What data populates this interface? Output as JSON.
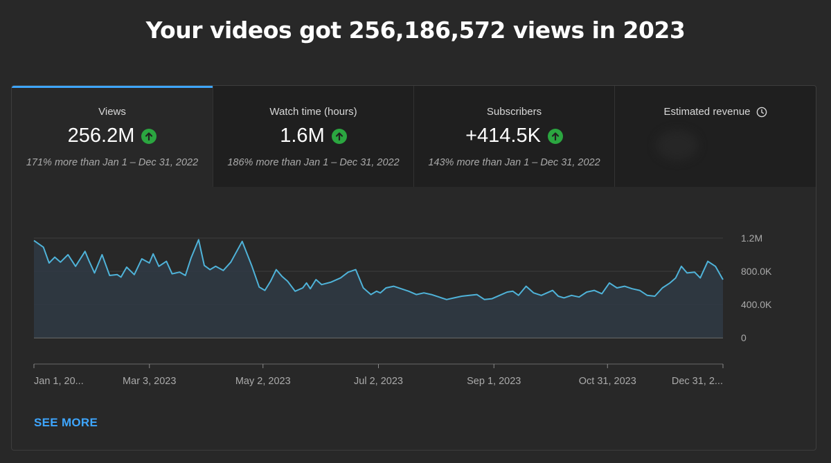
{
  "headline": "Your videos got 256,186,572 views in 2023",
  "tabs": [
    {
      "label": "Views",
      "value": "256.2M",
      "compare": "171% more than Jan 1 – Dec 31, 2022"
    },
    {
      "label": "Watch time (hours)",
      "value": "1.6M",
      "compare": "186% more than Jan 1 – Dec 31, 2022"
    },
    {
      "label": "Subscribers",
      "value": "+414.5K",
      "compare": "143% more than Jan 1 – Dec 31, 2022"
    },
    {
      "label": "Estimated revenue"
    }
  ],
  "see_more": "SEE MORE",
  "colors": {
    "accent": "#3ea6ff",
    "line": "#4fb3d9",
    "up": "#2ba640"
  },
  "chart_data": {
    "type": "area",
    "ylim": [
      0,
      1200000
    ],
    "y_ticks": [
      0,
      400000,
      800000,
      1200000
    ],
    "y_tick_labels": [
      "0",
      "400.0K",
      "800.0K",
      "1.2M"
    ],
    "x_tick_labels": [
      "Jan 1, 20...",
      "Mar 3, 2023",
      "May 2, 2023",
      "Jul 2, 2023",
      "Sep 1, 2023",
      "Oct 31, 2023",
      "Dec 31, 2..."
    ],
    "x_range_days": [
      0,
      364
    ],
    "x_tick_days": [
      0,
      61,
      121,
      182,
      243,
      303,
      364
    ],
    "series": [
      {
        "x": [
          0,
          5,
          8,
          11,
          14,
          18,
          22,
          27,
          29,
          32,
          36,
          40,
          44,
          46,
          49,
          53,
          57,
          61,
          63,
          66,
          70,
          73,
          77,
          80,
          83,
          87,
          90,
          93,
          96,
          100,
          104,
          110,
          115,
          119,
          122,
          125,
          128,
          131,
          134,
          138,
          142,
          144,
          146,
          149,
          152,
          157,
          162,
          166,
          170,
          174,
          178,
          181,
          183,
          186,
          190,
          194,
          198,
          202,
          206,
          210,
          214,
          218,
          222,
          226,
          230,
          234,
          238,
          242,
          246,
          250,
          253,
          256,
          260,
          264,
          268,
          271,
          274,
          277,
          280,
          284,
          288,
          292,
          296,
          300,
          304,
          308,
          312,
          316,
          320,
          324,
          328,
          332,
          336,
          339,
          342,
          345,
          349,
          352,
          356,
          360,
          364
        ],
        "values": [
          1170000,
          1090000,
          900000,
          970000,
          910000,
          1000000,
          860000,
          1040000,
          930000,
          780000,
          1000000,
          750000,
          760000,
          730000,
          850000,
          760000,
          950000,
          900000,
          1010000,
          860000,
          920000,
          770000,
          790000,
          750000,
          960000,
          1180000,
          870000,
          820000,
          860000,
          810000,
          910000,
          1160000,
          870000,
          610000,
          570000,
          680000,
          820000,
          740000,
          680000,
          560000,
          600000,
          660000,
          590000,
          700000,
          640000,
          670000,
          720000,
          790000,
          820000,
          600000,
          520000,
          560000,
          540000,
          600000,
          620000,
          590000,
          560000,
          520000,
          540000,
          520000,
          490000,
          460000,
          480000,
          500000,
          510000,
          520000,
          460000,
          470000,
          510000,
          550000,
          560000,
          510000,
          620000,
          540000,
          510000,
          540000,
          570000,
          500000,
          480000,
          510000,
          490000,
          550000,
          570000,
          530000,
          660000,
          600000,
          620000,
          590000,
          570000,
          510000,
          500000,
          600000,
          660000,
          720000,
          860000,
          780000,
          790000,
          720000,
          920000,
          860000,
          700000
        ]
      }
    ]
  }
}
